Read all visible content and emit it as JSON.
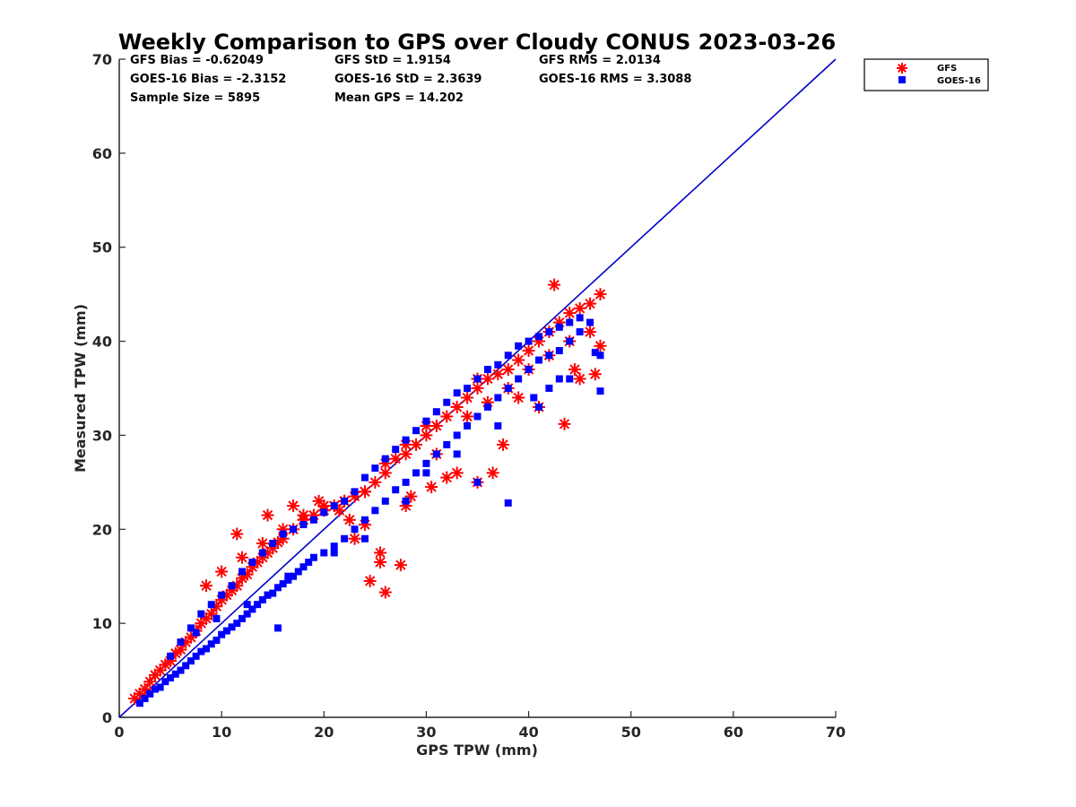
{
  "chart_data": {
    "type": "scatter",
    "title": "Weekly Comparison to GPS over Cloudy CONUS 2023-03-26",
    "xlabel": "GPS TPW (mm)",
    "ylabel": "Measured TPW (mm)",
    "xlim": [
      0,
      70
    ],
    "ylim": [
      0,
      70
    ],
    "x_ticks": [
      "0",
      "10",
      "20",
      "30",
      "40",
      "50",
      "60",
      "70"
    ],
    "y_ticks": [
      "0",
      "10",
      "20",
      "30",
      "40",
      "50",
      "60",
      "70"
    ],
    "grid": false,
    "legend_position": "top-right outside",
    "reference_line": {
      "x": [
        0,
        70
      ],
      "y": [
        0,
        70
      ],
      "color": "#0000cd"
    },
    "stats": [
      "GFS Bias = -0.62049",
      "GFS StD = 1.9154",
      "GFS RMS = 2.0134",
      "GOES-16 Bias = -2.3152",
      "GOES-16 StD = 2.3639",
      "GOES-16 RMS = 3.3088",
      "Sample Size = 5895",
      "Mean GPS = 14.202"
    ],
    "series": [
      {
        "name": "GFS",
        "marker": "asterisk",
        "color": "#ff0000",
        "x": [
          1.5,
          2,
          2.5,
          3,
          3.5,
          4,
          4.5,
          5,
          5.5,
          6,
          6.5,
          7,
          7.5,
          8,
          8.5,
          9,
          9.5,
          10,
          10.5,
          11,
          11.5,
          12,
          12.5,
          13,
          13.5,
          14,
          14.5,
          15,
          15.5,
          16,
          17,
          18,
          19,
          20,
          21,
          22,
          23,
          24,
          25,
          26,
          27,
          28,
          29,
          30,
          31,
          32,
          33,
          34,
          35,
          36,
          37,
          38,
          39,
          40,
          41,
          42,
          43,
          44,
          45,
          46,
          47,
          8.5,
          10,
          12,
          14,
          16,
          18,
          20,
          22,
          24,
          26,
          28,
          30,
          34,
          36,
          38,
          40,
          42,
          44,
          46,
          27.5,
          26,
          24.5,
          25.5,
          28,
          31,
          35,
          43.5,
          47,
          42.5,
          36.5,
          35,
          41,
          44.5,
          23,
          25.5,
          28.5,
          30.5,
          32,
          33,
          37.5,
          39,
          45,
          46.5,
          11.5,
          14.5,
          17,
          19.5,
          21.5,
          22.5,
          24
        ],
        "y": [
          2,
          2.5,
          3,
          3.8,
          4.5,
          5,
          5.6,
          6,
          6.8,
          7.2,
          8,
          8.5,
          9.2,
          10,
          10.5,
          11,
          11.8,
          12.5,
          13,
          13.5,
          14,
          14.8,
          15.2,
          16,
          16.5,
          17,
          17.5,
          18,
          18.6,
          19,
          20,
          21,
          21.5,
          22,
          22.5,
          23,
          23.5,
          24,
          25,
          26,
          27.5,
          28,
          29,
          30,
          31,
          32,
          33,
          34,
          35,
          36,
          36.5,
          37,
          38,
          39,
          40,
          41,
          42,
          43,
          43.5,
          44,
          45,
          14,
          15.5,
          17,
          18.5,
          20,
          21.5,
          22.5,
          23,
          24,
          27,
          29,
          31,
          32,
          33.5,
          35,
          37,
          38.5,
          40,
          41,
          16.2,
          13.3,
          14.5,
          16.5,
          22.5,
          28,
          36,
          31.2,
          39.5,
          46,
          26,
          25,
          33,
          37,
          19,
          17.5,
          23.5,
          24.5,
          25.5,
          26,
          29,
          34,
          36,
          36.5,
          19.5,
          21.5,
          22.5,
          23,
          22,
          21,
          20.5
        ]
      },
      {
        "name": "GOES-16",
        "marker": "square",
        "color": "#0000ff",
        "x": [
          2,
          2.5,
          3,
          3.5,
          4,
          4.5,
          5,
          5.5,
          6,
          6.5,
          7,
          7.5,
          8,
          8.5,
          9,
          9.5,
          10,
          10.5,
          11,
          11.5,
          12,
          12.5,
          13,
          13.5,
          14,
          14.5,
          15,
          15.5,
          16,
          16.5,
          17,
          17.5,
          18,
          19,
          20,
          21,
          22,
          23,
          24,
          25,
          26,
          27,
          28,
          29,
          30,
          31,
          32,
          33,
          34,
          35,
          36,
          37,
          38,
          39,
          40,
          41,
          42,
          43,
          44,
          45,
          46,
          47,
          5,
          6,
          7,
          8,
          9,
          10,
          11,
          12,
          13,
          14,
          15,
          16,
          17,
          18,
          19,
          20,
          21,
          22,
          23,
          24,
          25,
          26,
          27,
          28,
          29,
          30,
          31,
          32,
          33,
          34,
          35,
          36,
          37,
          38,
          39,
          40,
          41,
          42,
          43,
          44,
          45,
          38,
          35,
          41,
          43,
          47,
          46.5,
          15.5,
          21,
          24,
          28,
          30,
          33,
          37,
          40.5,
          42,
          44,
          7.5,
          9.5,
          12.5,
          14.5,
          16.5,
          18.5
        ],
        "y": [
          1.5,
          2,
          2.5,
          3,
          3.2,
          3.8,
          4.2,
          4.6,
          5,
          5.5,
          6,
          6.5,
          7,
          7.3,
          7.8,
          8.2,
          8.8,
          9.2,
          9.6,
          10,
          10.5,
          11,
          11.5,
          12,
          12.5,
          13,
          13.2,
          13.8,
          14.2,
          14.6,
          15,
          15.5,
          16,
          17,
          17.5,
          18.2,
          19,
          20,
          21,
          22,
          23,
          24.2,
          25,
          26,
          27,
          28,
          29,
          30,
          31,
          32,
          33,
          34,
          35,
          36,
          37,
          38,
          38.5,
          39,
          40,
          41,
          42,
          38.5,
          6.5,
          8,
          9.5,
          11,
          12,
          13,
          14,
          15.5,
          16.5,
          17.5,
          18.5,
          19.5,
          20,
          20.5,
          21,
          21.8,
          22.5,
          23,
          24,
          25.5,
          26.5,
          27.5,
          28.5,
          29.5,
          30.5,
          31.5,
          32.5,
          33.5,
          34.5,
          35,
          36,
          37,
          37.5,
          38.5,
          39.5,
          40,
          40.5,
          41,
          41.5,
          42,
          42.5,
          22.8,
          25,
          33,
          36,
          34.7,
          38.8,
          9.5,
          17.5,
          19,
          23,
          26,
          28,
          31,
          34,
          35,
          36,
          9,
          10.5,
          12,
          13,
          15,
          16.5
        ]
      }
    ]
  }
}
